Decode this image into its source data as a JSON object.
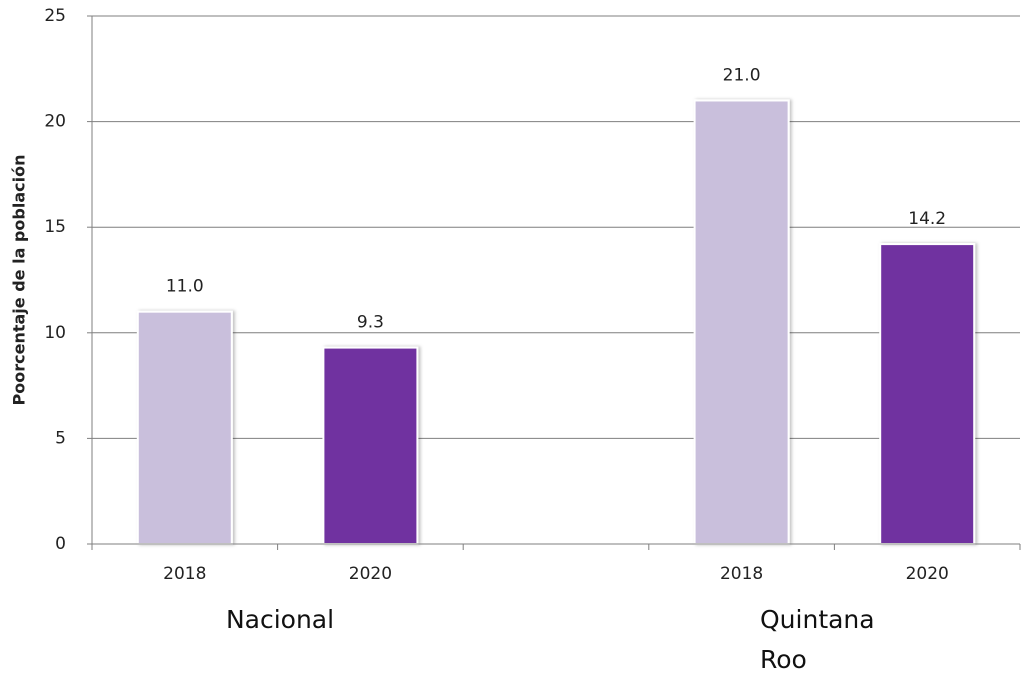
{
  "chart_data": {
    "type": "bar",
    "ylabel": "Poorcentaje de la población",
    "categories": [
      "2018",
      "2020",
      null,
      "2018",
      "2020"
    ],
    "values": [
      11.0,
      9.3,
      null,
      21.0,
      14.2
    ],
    "value_labels": [
      "11.0",
      "9.3",
      null,
      "21.0",
      "14.2"
    ],
    "colors": [
      "#c9bfdc",
      "#7030a0",
      null,
      "#c9bfdc",
      "#7030a0"
    ],
    "groups": [
      "Nacional",
      "Quintana Roo"
    ],
    "ylim": [
      0,
      25
    ],
    "yticks": [
      0,
      5,
      10,
      15,
      20,
      25
    ],
    "grid": true
  }
}
